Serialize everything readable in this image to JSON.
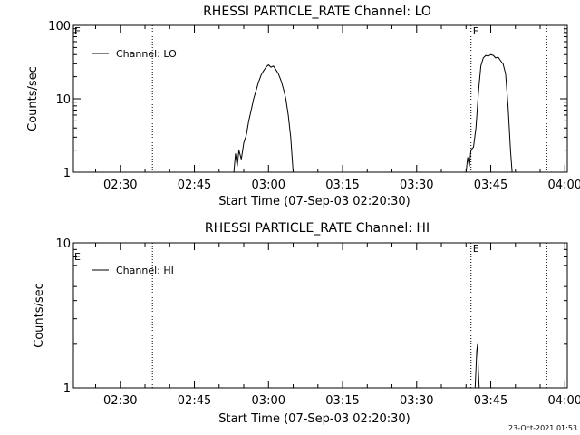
{
  "chart_data": [
    {
      "type": "line",
      "title": "RHESSI PARTICLE_RATE Channel: LO",
      "xlabel": "Start Time (07-Sep-03 02:20:30)",
      "ylabel": "Counts/sec",
      "yscale": "log",
      "ylim": [
        1,
        100
      ],
      "xlim": [
        "02:20:30",
        "04:00:30"
      ],
      "x_ticks": [
        "02:30",
        "02:45",
        "03:00",
        "03:15",
        "03:30",
        "03:45",
        "04:00"
      ],
      "y_ticks": [
        "1",
        "10",
        "100"
      ],
      "legend": {
        "position": "top-left",
        "entries": [
          "Channel: LO"
        ]
      },
      "markers": [
        {
          "time": "02:36:30",
          "label": ""
        },
        {
          "time": "03:41:00",
          "label": "E"
        },
        {
          "time": "03:56:20",
          "label": ""
        }
      ],
      "corner_labels": [
        "E"
      ],
      "series": [
        {
          "name": "Channel: LO",
          "points": [
            [
              "02:53:00",
              1.0
            ],
            [
              "02:53:20",
              1.8
            ],
            [
              "02:53:40",
              1.2
            ],
            [
              "02:54:00",
              2.0
            ],
            [
              "02:54:30",
              1.5
            ],
            [
              "02:55:00",
              2.5
            ],
            [
              "02:55:30",
              3.2
            ],
            [
              "02:56:00",
              5.0
            ],
            [
              "02:56:30",
              7.0
            ],
            [
              "02:57:00",
              10.0
            ],
            [
              "02:57:30",
              13.0
            ],
            [
              "02:58:00",
              17.0
            ],
            [
              "02:58:30",
              21.0
            ],
            [
              "02:59:00",
              24.0
            ],
            [
              "02:59:30",
              27.0
            ],
            [
              "03:00:00",
              29.0
            ],
            [
              "03:00:30",
              27.0
            ],
            [
              "03:01:00",
              28.0
            ],
            [
              "03:01:30",
              25.0
            ],
            [
              "03:02:00",
              22.0
            ],
            [
              "03:02:30",
              18.0
            ],
            [
              "03:03:00",
              14.0
            ],
            [
              "03:03:30",
              10.0
            ],
            [
              "03:04:00",
              6.0
            ],
            [
              "03:04:30",
              3.0
            ],
            [
              "03:05:00",
              1.0
            ],
            null,
            [
              "03:40:00",
              1.0
            ],
            [
              "03:40:20",
              1.6
            ],
            [
              "03:40:40",
              1.2
            ],
            [
              "03:41:00",
              2.0
            ],
            [
              "03:41:30",
              2.2
            ],
            [
              "03:42:00",
              4.0
            ],
            [
              "03:42:30",
              12.0
            ],
            [
              "03:43:00",
              28.0
            ],
            [
              "03:43:30",
              36.0
            ],
            [
              "03:44:00",
              39.0
            ],
            [
              "03:44:30",
              38.0
            ],
            [
              "03:45:00",
              40.0
            ],
            [
              "03:45:30",
              39.0
            ],
            [
              "03:46:00",
              36.0
            ],
            [
              "03:46:30",
              37.0
            ],
            [
              "03:47:00",
              33.0
            ],
            [
              "03:47:30",
              30.0
            ],
            [
              "03:48:00",
              22.0
            ],
            [
              "03:48:30",
              8.0
            ],
            [
              "03:49:00",
              2.0
            ],
            [
              "03:49:20",
              1.0
            ]
          ]
        }
      ]
    },
    {
      "type": "line",
      "title": "RHESSI PARTICLE_RATE Channel: HI",
      "xlabel": "Start Time (07-Sep-03 02:20:30)",
      "ylabel": "Counts/sec",
      "yscale": "log",
      "ylim": [
        1,
        10
      ],
      "xlim": [
        "02:20:30",
        "04:00:30"
      ],
      "x_ticks": [
        "02:30",
        "02:45",
        "03:00",
        "03:15",
        "03:30",
        "03:45",
        "04:00"
      ],
      "y_ticks": [
        "1",
        "10"
      ],
      "legend": {
        "position": "top-left",
        "entries": [
          "Channel: HI"
        ]
      },
      "markers": [
        {
          "time": "02:36:30",
          "label": ""
        },
        {
          "time": "03:41:00",
          "label": "E"
        },
        {
          "time": "03:56:20",
          "label": ""
        }
      ],
      "corner_labels": [
        "E"
      ],
      "series": [
        {
          "name": "Channel: HI",
          "points": [
            [
              "03:41:50",
              1.0
            ],
            [
              "03:42:10",
              1.8
            ],
            [
              "03:42:20",
              2.0
            ],
            [
              "03:42:30",
              1.3
            ],
            [
              "03:42:40",
              1.0
            ]
          ]
        }
      ]
    }
  ],
  "footer_timestamp": "23-Oct-2021 01:53"
}
